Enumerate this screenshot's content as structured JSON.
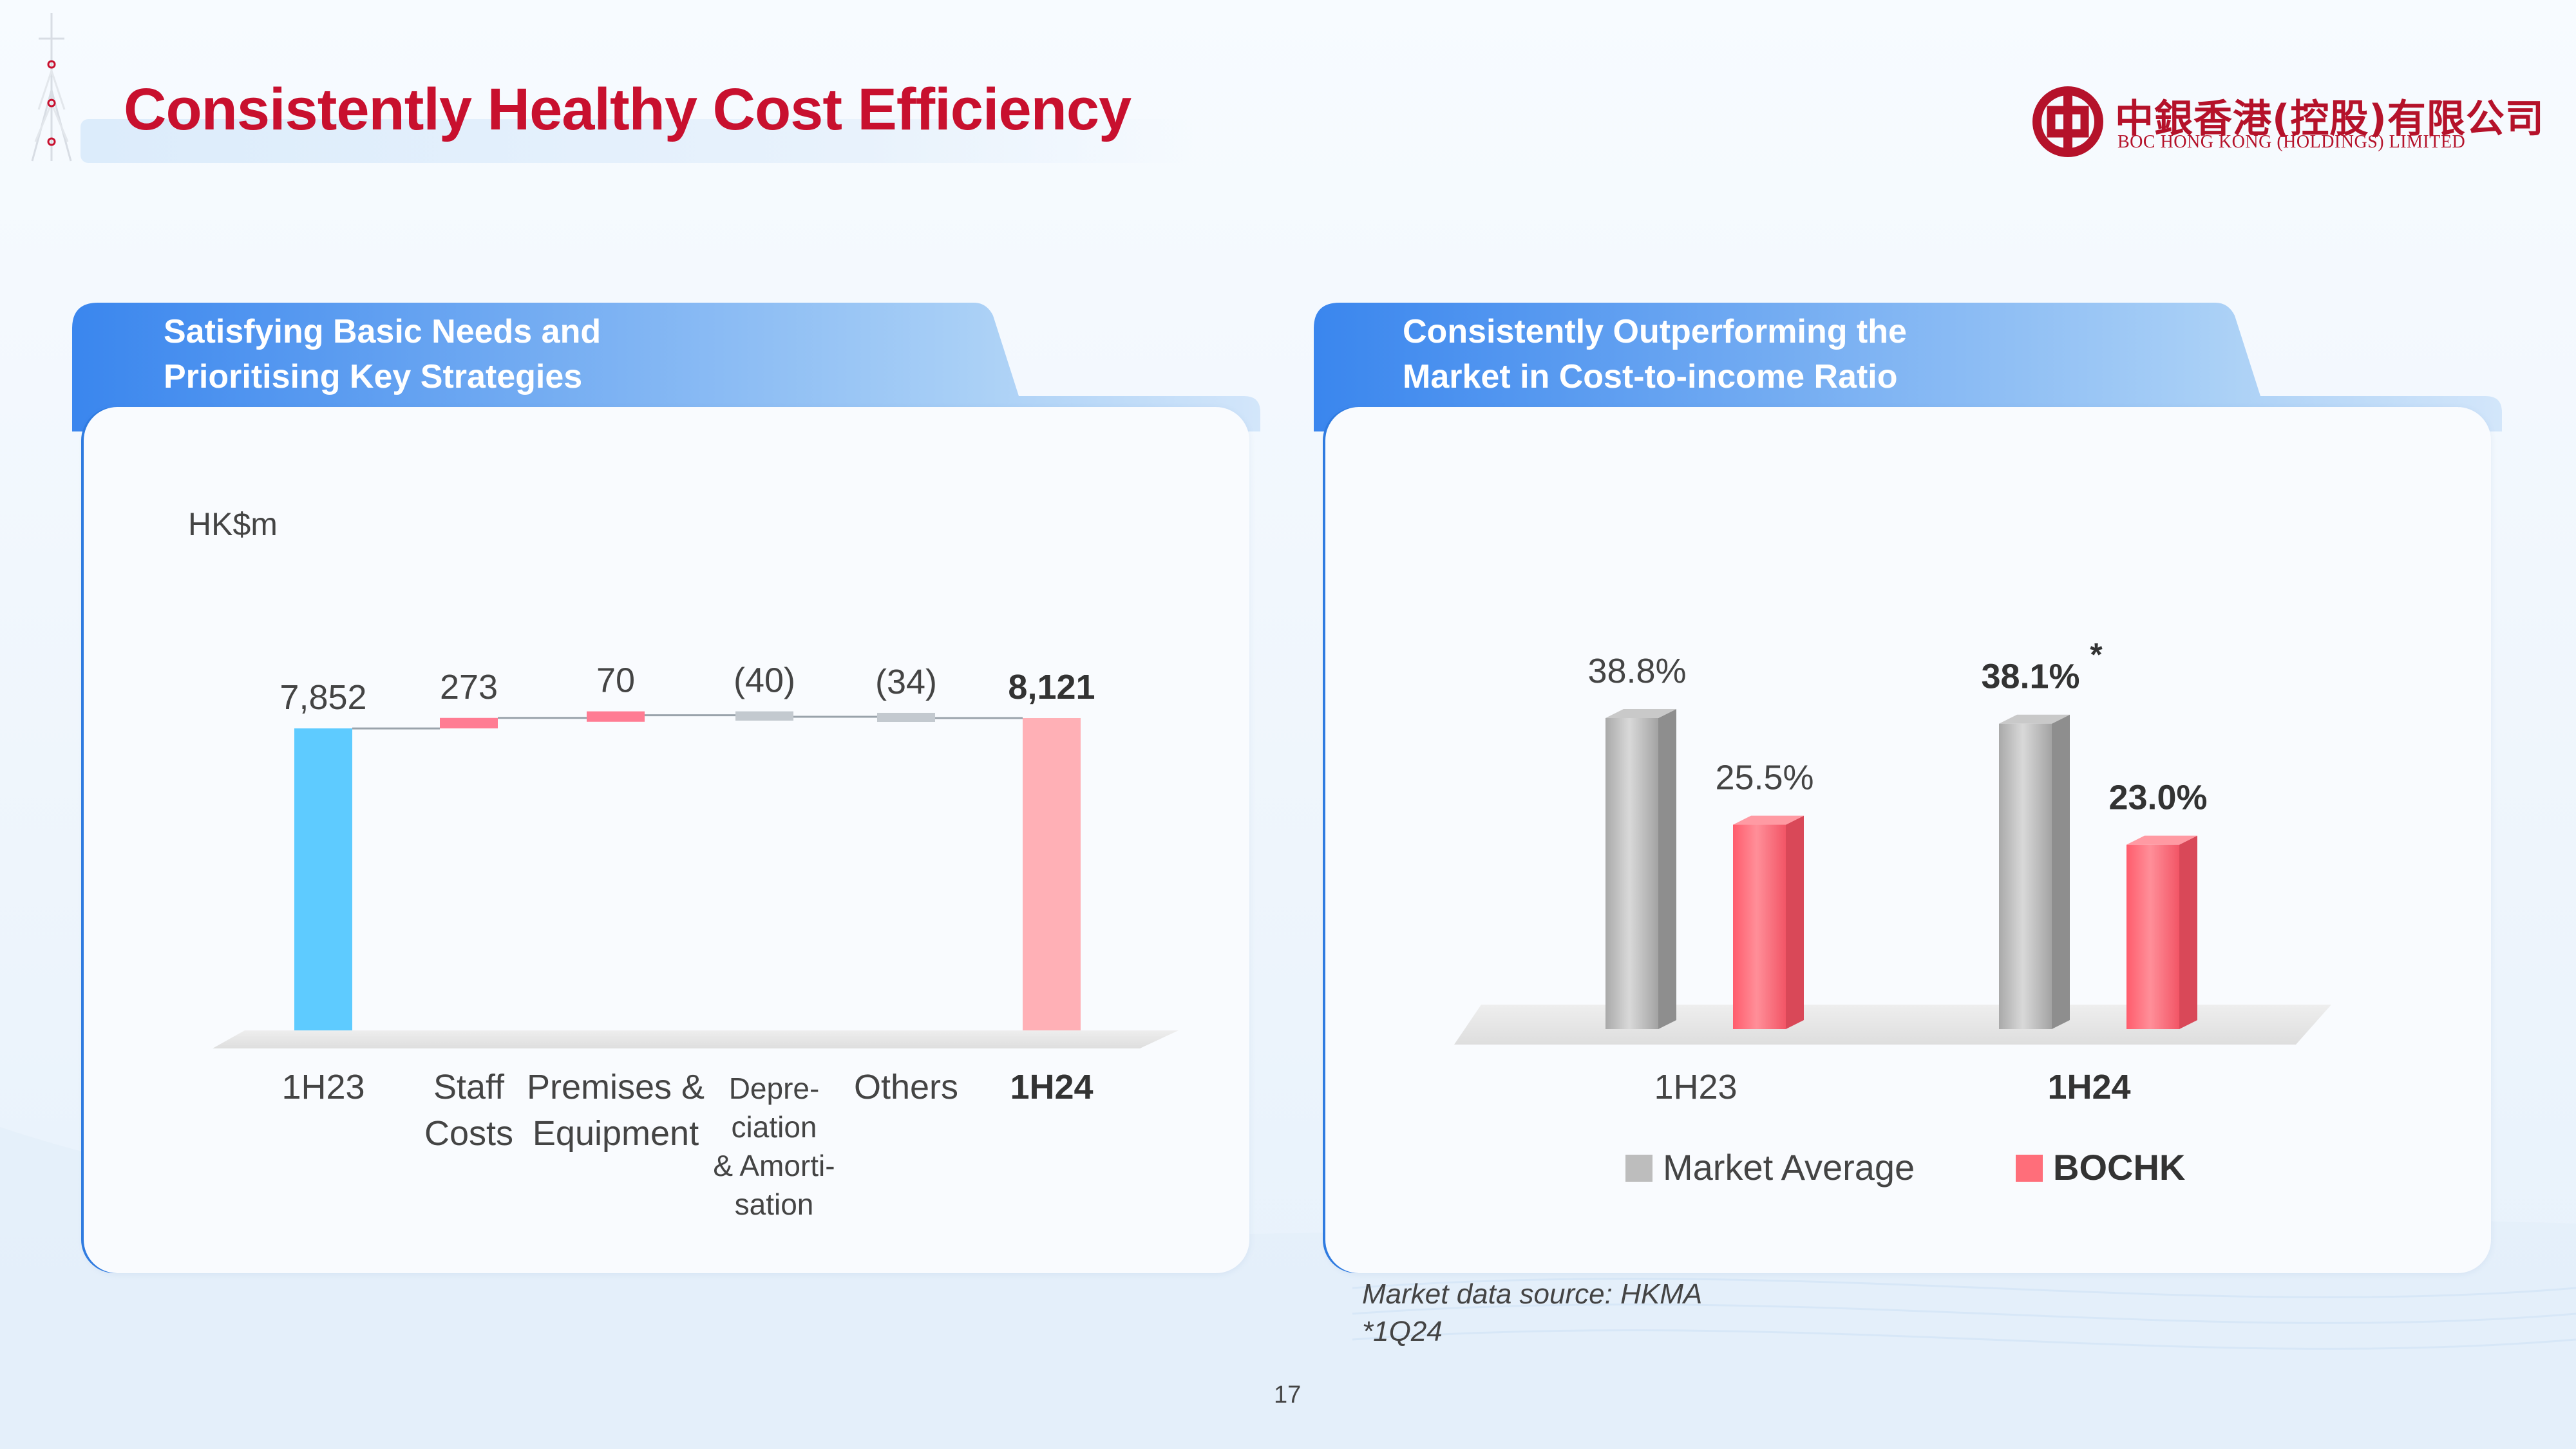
{
  "header": {
    "title": "Consistently Healthy Cost Efficiency",
    "logo_cn": "中銀香港(控股)有限公司",
    "logo_en": "BOC HONG KONG (HOLDINGS) LIMITED"
  },
  "colors": {
    "brand_red": "#c8102e",
    "panel_blue": "#3f8ef0",
    "waterfall_start": "#5ecbff",
    "waterfall_increase": "#ff7c93",
    "waterfall_decrease": "#c3c9cf",
    "waterfall_end": "#ffb0b6",
    "market_average": "#bdbdbd",
    "bochk": "#ff6e7a"
  },
  "left_panel": {
    "title_line1": "Satisfying Basic Needs and",
    "title_line2": "Prioritising Key Strategies",
    "unit": "HK$m"
  },
  "right_panel": {
    "title_line1": "Consistently Outperforming the",
    "title_line2": "Market in Cost-to-income Ratio"
  },
  "footnotes": {
    "source": "Market data source: HKMA",
    "asterisk": "*1Q24"
  },
  "page_number": "17",
  "chart_data": [
    {
      "type": "bar",
      "subtype": "waterfall",
      "unit": "HK$m",
      "categories": [
        [
          "1H23"
        ],
        [
          "Staff",
          "Costs"
        ],
        [
          "Premises &",
          "Equipment"
        ],
        [
          "Depre-",
          "ciation",
          "& Amorti-",
          "sation"
        ],
        [
          "Others"
        ],
        [
          "1H24"
        ]
      ],
      "values": [
        7852,
        273,
        70,
        -40,
        -34,
        8121
      ],
      "value_labels": [
        "7,852",
        "273",
        "70",
        "(40)",
        "(34)",
        "8,121"
      ],
      "kinds": [
        "total",
        "increase",
        "increase",
        "decrease",
        "decrease",
        "total"
      ],
      "bold": [
        false,
        false,
        false,
        false,
        false,
        true
      ],
      "ylim": [
        0,
        9000
      ],
      "grid": false
    },
    {
      "type": "bar",
      "subtype": "3d-grouped",
      "categories": [
        "1H23",
        "1H24"
      ],
      "bold_categories": [
        false,
        true
      ],
      "series": [
        {
          "name": "Market Average",
          "values": [
            38.8,
            38.1
          ],
          "labels": [
            "38.8%",
            "38.1%"
          ],
          "bold": [
            false,
            true
          ],
          "marks": [
            "",
            "*"
          ]
        },
        {
          "name": "BOCHK",
          "values": [
            25.5,
            23.0
          ],
          "labels": [
            "25.5%",
            "23.0%"
          ],
          "bold": [
            false,
            true
          ],
          "marks": [
            "",
            ""
          ]
        }
      ],
      "unit": "%",
      "ylim": [
        0,
        45
      ],
      "legend": "bottom",
      "legend_bold": [
        false,
        true
      ],
      "grid": false
    }
  ]
}
